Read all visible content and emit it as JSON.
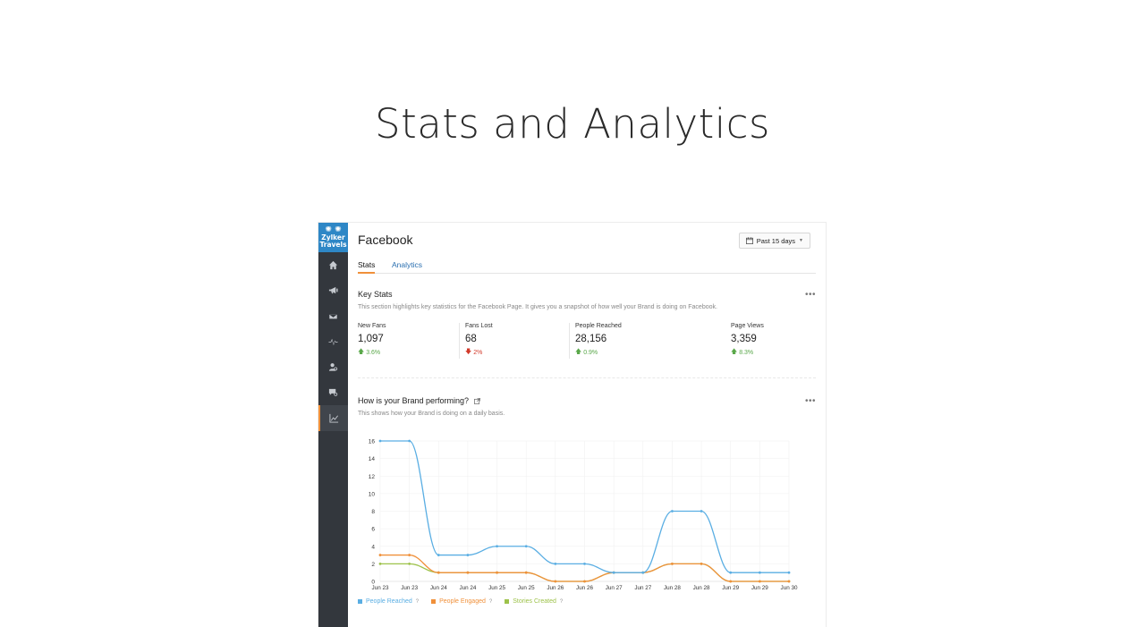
{
  "hero": {
    "title": "Stats and Analytics"
  },
  "logo": {
    "line1": "Zylker",
    "line2": "Travels"
  },
  "sidebar": {
    "items": [
      {
        "icon": "home-icon"
      },
      {
        "icon": "megaphone-icon"
      },
      {
        "icon": "mail-icon"
      },
      {
        "icon": "pulse-icon"
      },
      {
        "icon": "user-search-icon"
      },
      {
        "icon": "chat-search-icon"
      },
      {
        "icon": "analytics-chart-icon",
        "active": true
      }
    ]
  },
  "header": {
    "title": "Facebook",
    "date_range": "Past 15 days"
  },
  "tabs": [
    {
      "label": "Stats",
      "active": true
    },
    {
      "label": "Analytics",
      "active": false
    }
  ],
  "key_stats": {
    "title": "Key Stats",
    "description": "This section highlights key statistics for the Facebook Page. It gives you a snapshot of how well your Brand is doing on Facebook.",
    "more": "•••",
    "items": [
      {
        "label": "New Fans",
        "value": "1,097",
        "delta": "3.6%",
        "direction": "up"
      },
      {
        "label": "Fans Lost",
        "value": "68",
        "delta": "2%",
        "direction": "down"
      },
      {
        "label": "People Reached",
        "value": "28,156",
        "delta": "0.9%",
        "direction": "up"
      },
      {
        "label": "Page Views",
        "value": "3,359",
        "delta": "8.3%",
        "direction": "up"
      }
    ]
  },
  "performance": {
    "title": "How is your Brand performing?",
    "description": "This shows how your Brand is doing on a daily basis.",
    "more": "•••"
  },
  "colors": {
    "accent": "#f0903a",
    "people_reached": "#5aaee3",
    "people_engaged": "#f0903a",
    "stories_created": "#9dc24a",
    "up": "#5aa84a",
    "down": "#d23a2b"
  },
  "chart_data": {
    "type": "line",
    "categories": [
      "Jun 23",
      "Jun 23",
      "Jun 24",
      "Jun 24",
      "Jun 25",
      "Jun 25",
      "Jun 26",
      "Jun 26",
      "Jun 27",
      "Jun 27",
      "Jun 28",
      "Jun 28",
      "Jun 29",
      "Jun 29",
      "Jun 30"
    ],
    "series": [
      {
        "name": "People Reached",
        "values": [
          16,
          16,
          3,
          3,
          4,
          4,
          2,
          2,
          1,
          1,
          8,
          8,
          1,
          1,
          1
        ]
      },
      {
        "name": "People Engaged",
        "values": [
          3,
          3,
          1,
          1,
          1,
          1,
          0,
          0,
          1,
          1,
          2,
          2,
          0,
          0,
          0
        ]
      },
      {
        "name": "Stories Created",
        "values": [
          2,
          2,
          1,
          1,
          1,
          1,
          0,
          0,
          1,
          1,
          2,
          2,
          0,
          0,
          0
        ]
      }
    ],
    "yticks": [
      "0",
      "2",
      "4",
      "6",
      "8",
      "10",
      "12",
      "14",
      "16"
    ],
    "ylim": [
      0,
      16
    ],
    "grid": true,
    "legend": "bottom-left",
    "legend_help": "?"
  }
}
